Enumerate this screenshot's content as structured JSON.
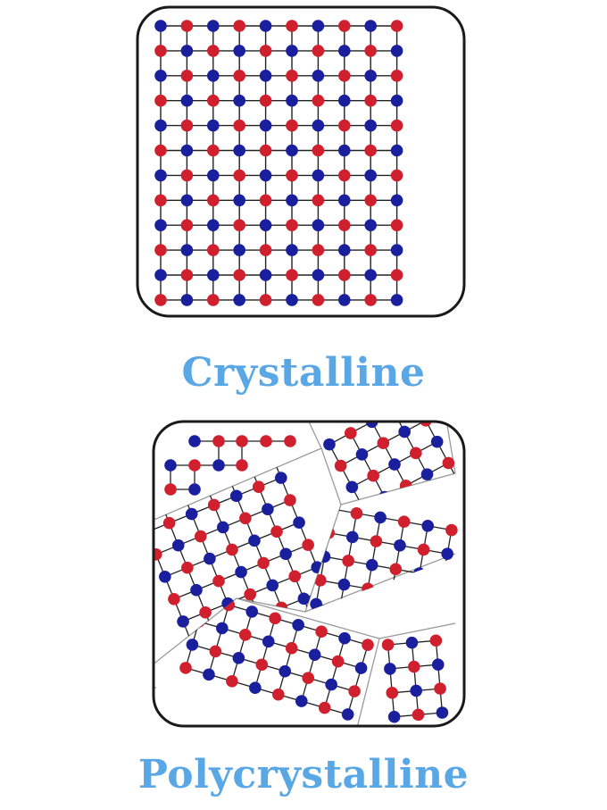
{
  "colors": {
    "atom_red": "#d0202e",
    "atom_blue": "#1a1f9e",
    "bond": "#222222",
    "grain_boundary": "#9a9a9a",
    "frame": "#1a1a1a",
    "label": "#5aa7e6"
  },
  "crystalline": {
    "label": "Crystalline",
    "lattice_rows": 12,
    "lattice_cols": 10
  },
  "polycrystalline": {
    "label": "Polycrystalline"
  }
}
